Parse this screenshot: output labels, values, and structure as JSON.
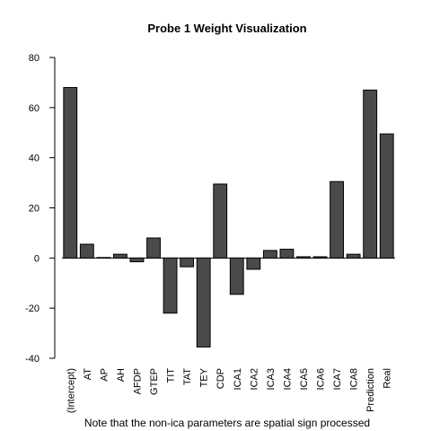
{
  "chart_data": {
    "type": "bar",
    "title": "Probe 1 Weight Visualization",
    "note": "Note that the non-ica parameters are spatial sign processed",
    "categories": [
      "(Intercept)",
      "AT",
      "AP",
      "AH",
      "AFDP",
      "GTEP",
      "TIT",
      "TAT",
      "TEY",
      "CDP",
      "ICA1",
      "ICA2",
      "ICA3",
      "ICA4",
      "ICA5",
      "ICA6",
      "ICA7",
      "ICA8",
      "Prediction",
      "Real"
    ],
    "values": [
      68,
      5.5,
      0.2,
      1.5,
      -1.5,
      8,
      -22,
      -3.5,
      -35.5,
      29.5,
      -14.5,
      -4.5,
      3,
      3.5,
      0.5,
      0.5,
      30.5,
      1.5,
      67,
      49.5
    ],
    "ylim": [
      -40,
      80
    ],
    "yticks": [
      -40,
      -20,
      0,
      20,
      40,
      60,
      80
    ],
    "xlabel": "",
    "ylabel": "",
    "bar_color": "#4a4a4a",
    "grid": false
  }
}
